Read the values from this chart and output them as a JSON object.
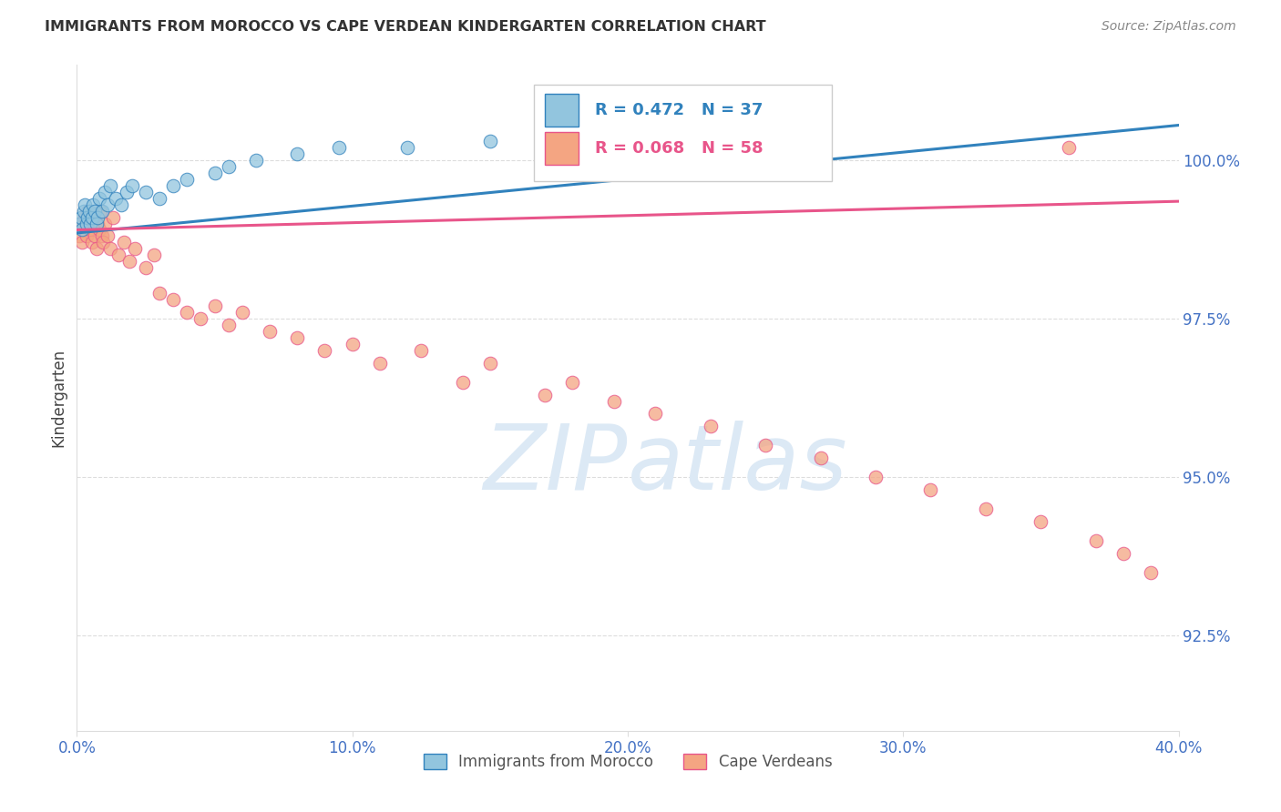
{
  "title": "IMMIGRANTS FROM MOROCCO VS CAPE VERDEAN KINDERGARTEN CORRELATION CHART",
  "source": "Source: ZipAtlas.com",
  "ylabel": "Kindergarten",
  "ytick_values": [
    100.0,
    97.5,
    95.0,
    92.5
  ],
  "xlim": [
    0.0,
    40.0
  ],
  "ylim": [
    91.0,
    101.5
  ],
  "blue_color": "#92c5de",
  "pink_color": "#f4a582",
  "blue_line_color": "#3182bd",
  "pink_line_color": "#e8558a",
  "title_color": "#333333",
  "axis_tick_color": "#4472c4",
  "watermark_color": "#dce9f5",
  "background_color": "#ffffff",
  "grid_color": "#dddddd",
  "morocco_x": [
    0.1,
    0.15,
    0.2,
    0.25,
    0.3,
    0.35,
    0.4,
    0.45,
    0.5,
    0.55,
    0.6,
    0.65,
    0.7,
    0.75,
    0.8,
    0.9,
    1.0,
    1.1,
    1.2,
    1.4,
    1.6,
    1.8,
    2.0,
    2.5,
    3.0,
    3.5,
    4.0,
    5.0,
    5.5,
    6.5,
    8.0,
    9.5,
    12.0,
    15.0,
    17.0,
    19.0,
    20.5
  ],
  "morocco_y": [
    99.0,
    99.1,
    98.9,
    99.2,
    99.3,
    99.0,
    99.1,
    99.2,
    99.0,
    99.1,
    99.3,
    99.2,
    99.0,
    99.1,
    99.4,
    99.2,
    99.5,
    99.3,
    99.6,
    99.4,
    99.3,
    99.5,
    99.6,
    99.5,
    99.4,
    99.6,
    99.7,
    99.8,
    99.9,
    100.0,
    100.1,
    100.2,
    100.2,
    100.3,
    100.4,
    100.4,
    100.5
  ],
  "cape_x": [
    0.1,
    0.15,
    0.2,
    0.25,
    0.3,
    0.35,
    0.4,
    0.45,
    0.5,
    0.55,
    0.6,
    0.65,
    0.7,
    0.75,
    0.8,
    0.85,
    0.9,
    0.95,
    1.0,
    1.1,
    1.2,
    1.3,
    1.5,
    1.7,
    1.9,
    2.1,
    2.5,
    2.8,
    3.0,
    3.5,
    4.0,
    4.5,
    5.0,
    5.5,
    6.0,
    7.0,
    8.0,
    9.0,
    10.0,
    11.0,
    12.5,
    14.0,
    15.0,
    17.0,
    18.0,
    19.5,
    21.0,
    23.0,
    25.0,
    27.0,
    29.0,
    31.0,
    33.0,
    35.0,
    37.0,
    38.0,
    39.0,
    36.0
  ],
  "cape_y": [
    98.8,
    99.0,
    98.7,
    98.9,
    99.1,
    98.8,
    99.2,
    99.0,
    98.9,
    98.7,
    99.1,
    98.8,
    98.6,
    99.0,
    98.9,
    99.2,
    98.8,
    98.7,
    99.0,
    98.8,
    98.6,
    99.1,
    98.5,
    98.7,
    98.4,
    98.6,
    98.3,
    98.5,
    97.9,
    97.8,
    97.6,
    97.5,
    97.7,
    97.4,
    97.6,
    97.3,
    97.2,
    97.0,
    97.1,
    96.8,
    97.0,
    96.5,
    96.8,
    96.3,
    96.5,
    96.2,
    96.0,
    95.8,
    95.5,
    95.3,
    95.0,
    94.8,
    94.5,
    94.3,
    94.0,
    93.8,
    93.5,
    100.2
  ],
  "blue_trend_x": [
    0.0,
    40.0
  ],
  "blue_trend_y": [
    98.85,
    100.55
  ],
  "pink_trend_x": [
    0.0,
    40.0
  ],
  "pink_trend_y": [
    98.9,
    99.35
  ]
}
